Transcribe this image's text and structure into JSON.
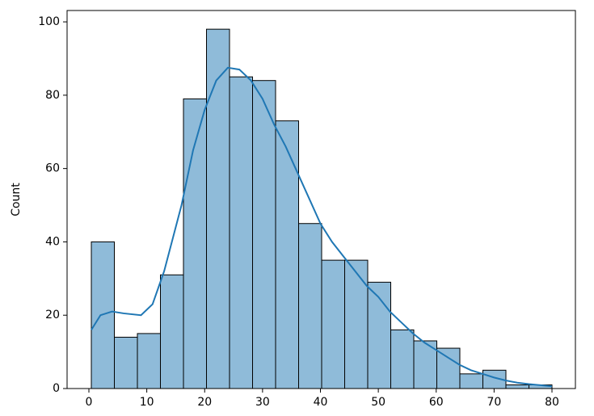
{
  "chart_data": {
    "type": "histogram",
    "y_label": "Count",
    "bins": [
      0.42,
      4.399,
      8.378,
      12.357,
      16.336,
      20.315,
      24.294,
      28.273,
      32.252,
      36.231,
      40.21,
      44.189,
      48.168,
      52.147,
      56.126,
      60.105,
      64.084,
      68.063,
      72.042,
      76.021,
      80.0
    ],
    "values": [
      40,
      14,
      15,
      31,
      79,
      98,
      85,
      84,
      73,
      45,
      35,
      35,
      29,
      16,
      13,
      11,
      4,
      5,
      1,
      1
    ],
    "color": "#8fbbd9",
    "edgecolor": "#000000",
    "kde": {
      "color": "#1f77b4",
      "x": [
        0.42,
        2,
        4,
        6,
        9,
        11,
        13,
        16,
        18,
        20,
        22,
        24,
        26,
        28,
        30,
        32,
        34,
        36,
        38,
        40,
        42,
        44,
        46,
        48,
        50,
        52,
        54,
        56,
        58,
        60,
        62,
        64,
        66,
        68,
        70,
        72,
        74,
        76,
        78,
        80
      ],
      "values": [
        16,
        20,
        21,
        20.5,
        20,
        23,
        32,
        50,
        65,
        76,
        84,
        87.5,
        87,
        84,
        79,
        72,
        66,
        59,
        52,
        45,
        40,
        36,
        32,
        28,
        25,
        21,
        18,
        15,
        12.5,
        10.5,
        8.5,
        6.5,
        5,
        4,
        3,
        2.2,
        1.6,
        1.2,
        0.9,
        0.6
      ]
    },
    "xlim": [
      -3.77,
      84.05
    ],
    "ylim": [
      0,
      103.1
    ],
    "xticks": [
      0,
      10,
      20,
      30,
      40,
      50,
      60,
      70,
      80
    ],
    "yticks": [
      0,
      20,
      40,
      60,
      80,
      100
    ]
  }
}
